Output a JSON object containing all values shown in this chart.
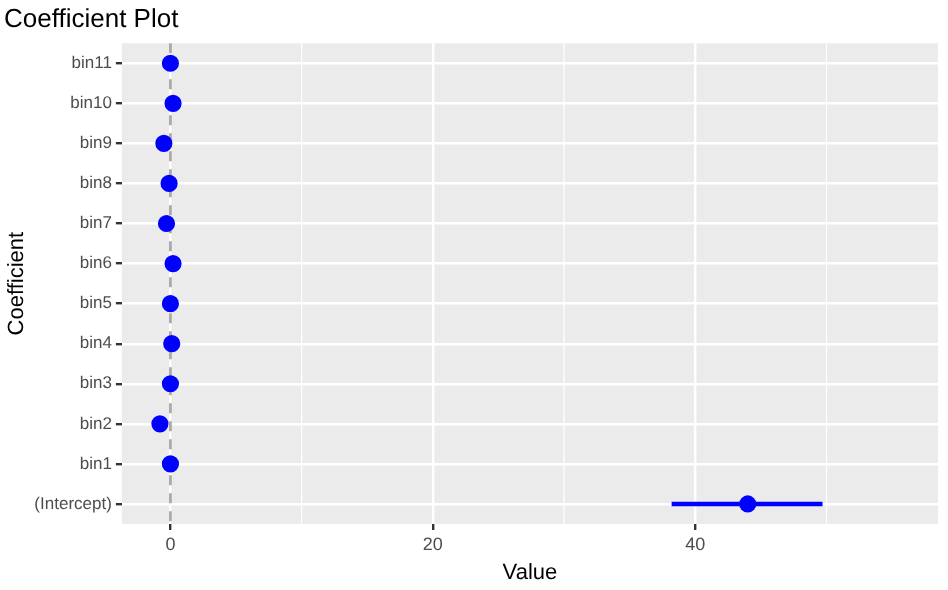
{
  "chart_data": {
    "type": "scatter",
    "orientation": "horizontal",
    "title": "Coefficient Plot",
    "xlabel": "Value",
    "ylabel": "Coefficient",
    "categories": [
      "bin11",
      "bin10",
      "bin9",
      "bin8",
      "bin7",
      "bin6",
      "bin5",
      "bin4",
      "bin3",
      "bin2",
      "bin1",
      "(Intercept)"
    ],
    "series": [
      {
        "color": "#0000ff",
        "values": [
          0,
          0.2,
          -0.5,
          -0.1,
          -0.3,
          0.2,
          0,
          0.1,
          0,
          -0.8,
          0,
          44
        ],
        "errors": [
          null,
          null,
          null,
          null,
          null,
          null,
          null,
          null,
          null,
          null,
          null,
          [
            38.2,
            49.7
          ]
        ]
      }
    ],
    "xlim": [
      -3.7,
      58.5
    ],
    "xticks": [
      0,
      20,
      40
    ],
    "grid": true,
    "marker": "circle",
    "ref_lines": [
      {
        "axis": "x",
        "value": 0,
        "color": "#aaaaaa",
        "line_style": "dashed"
      }
    ]
  }
}
